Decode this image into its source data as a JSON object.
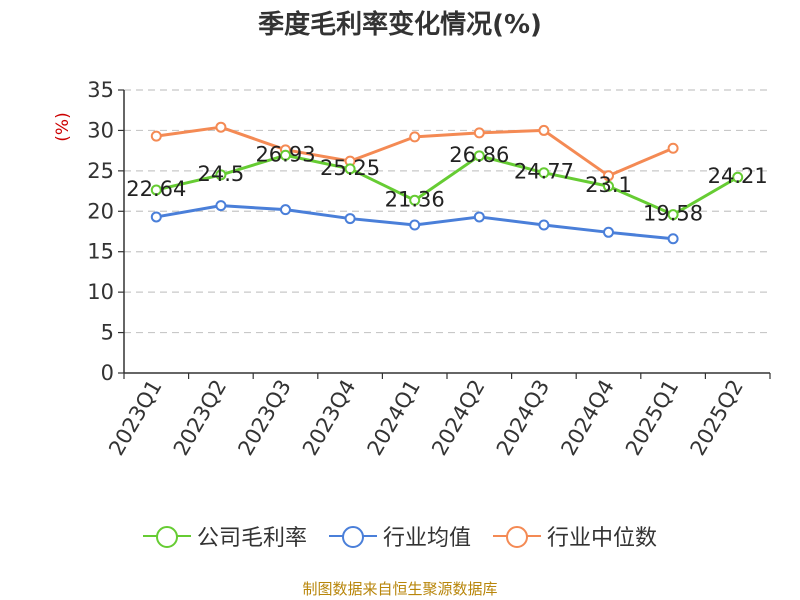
{
  "title": "季度毛利率变化情况(%)",
  "source": "制图数据来自恒生聚源数据库",
  "chart_data": {
    "type": "line",
    "title": "季度毛利率变化情况(%)",
    "ylabel": "(%)",
    "ylim": [
      0,
      35
    ],
    "yticks": [
      0,
      5,
      10,
      15,
      20,
      25,
      30,
      35
    ],
    "grid": true,
    "legend_position": "bottom",
    "categories": [
      "2023Q1",
      "2023Q2",
      "2023Q3",
      "2023Q4",
      "2024Q1",
      "2024Q2",
      "2024Q3",
      "2024Q4",
      "2025Q1",
      "2025Q2"
    ],
    "series": [
      {
        "name": "公司毛利率",
        "color": "#66cc33",
        "values": [
          22.64,
          24.5,
          26.93,
          25.25,
          21.36,
          26.86,
          24.77,
          23.1,
          19.58,
          24.21
        ],
        "labels": [
          "22.64",
          "24.5",
          "26.93",
          "25.25",
          "21.36",
          "26.86",
          "24.77",
          "23.1",
          "19.58",
          "24.21"
        ]
      },
      {
        "name": "行业均值",
        "color": "#4a7fd9",
        "values": [
          19.3,
          20.7,
          20.2,
          19.1,
          18.3,
          19.3,
          18.3,
          17.4,
          16.6,
          null
        ]
      },
      {
        "name": "行业中位数",
        "color": "#f48a54",
        "values": [
          29.3,
          30.4,
          27.6,
          26.2,
          29.2,
          29.7,
          30.0,
          24.4,
          27.8,
          null
        ]
      }
    ]
  }
}
